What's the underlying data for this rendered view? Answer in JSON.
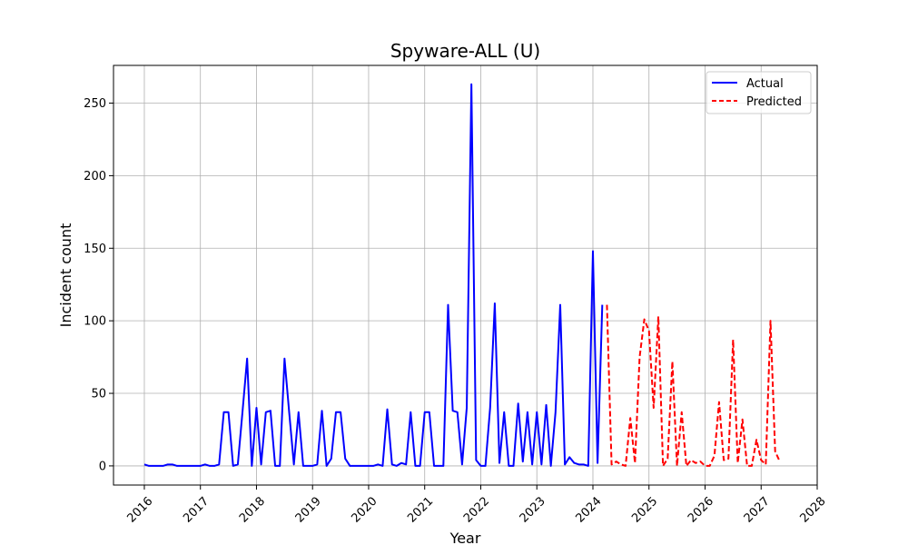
{
  "chart_data": {
    "type": "line",
    "title": "Spyware-ALL (U)",
    "xlabel": "Year",
    "ylabel": "Incident count",
    "xlim": [
      2015.45,
      2028.0
    ],
    "ylim": [
      -13.2,
      276.0
    ],
    "grid": true,
    "legend_position": "top-right",
    "x_ticks": [
      2016,
      2017,
      2018,
      2019,
      2020,
      2021,
      2022,
      2023,
      2024,
      2025,
      2026,
      2027,
      2028
    ],
    "x_tick_labels": [
      "2016",
      "2017",
      "2018",
      "2019",
      "2020",
      "2021",
      "2022",
      "2023",
      "2024",
      "2025",
      "2026",
      "2027",
      "2028"
    ],
    "y_ticks": [
      0,
      50,
      100,
      150,
      200,
      250
    ],
    "y_tick_labels": [
      "0",
      "50",
      "100",
      "150",
      "200",
      "250"
    ],
    "series": [
      {
        "name": "Actual",
        "color": "#0000ff",
        "style": "solid",
        "x": [
          2016.0,
          2016.083,
          2016.167,
          2016.25,
          2016.333,
          2016.417,
          2016.5,
          2016.583,
          2016.667,
          2016.75,
          2016.833,
          2016.917,
          2017.0,
          2017.083,
          2017.167,
          2017.25,
          2017.333,
          2017.417,
          2017.5,
          2017.583,
          2017.667,
          2017.75,
          2017.833,
          2017.917,
          2018.0,
          2018.083,
          2018.167,
          2018.25,
          2018.333,
          2018.417,
          2018.5,
          2018.583,
          2018.667,
          2018.75,
          2018.833,
          2018.917,
          2019.0,
          2019.083,
          2019.167,
          2019.25,
          2019.333,
          2019.417,
          2019.5,
          2019.583,
          2019.667,
          2019.75,
          2019.833,
          2019.917,
          2020.0,
          2020.083,
          2020.167,
          2020.25,
          2020.333,
          2020.417,
          2020.5,
          2020.583,
          2020.667,
          2020.75,
          2020.833,
          2020.917,
          2021.0,
          2021.083,
          2021.167,
          2021.25,
          2021.333,
          2021.417,
          2021.5,
          2021.583,
          2021.667,
          2021.75,
          2021.833,
          2021.917,
          2022.0,
          2022.083,
          2022.167,
          2022.25,
          2022.333,
          2022.417,
          2022.5,
          2022.583,
          2022.667,
          2022.75,
          2022.833,
          2022.917,
          2023.0,
          2023.083,
          2023.167,
          2023.25,
          2023.333,
          2023.417,
          2023.5,
          2023.583,
          2023.667,
          2023.75,
          2023.833,
          2023.917,
          2024.0,
          2024.083,
          2024.167
        ],
        "values": [
          1,
          0,
          0,
          0,
          0,
          1,
          1,
          0,
          0,
          0,
          0,
          0,
          0,
          1,
          0,
          0,
          1,
          37,
          37,
          0,
          1,
          37,
          74,
          0,
          40,
          1,
          37,
          38,
          0,
          0,
          74,
          37,
          1,
          37,
          0,
          0,
          0,
          1,
          38,
          0,
          5,
          37,
          37,
          5,
          0,
          0,
          0,
          0,
          0,
          0,
          1,
          0,
          39,
          1,
          0,
          2,
          1,
          37,
          0,
          0,
          37,
          37,
          0,
          0,
          0,
          111,
          38,
          37,
          1,
          40,
          263,
          4,
          0,
          0,
          40,
          112,
          2,
          37,
          0,
          0,
          43,
          3,
          37,
          1,
          37,
          1,
          42,
          0,
          37,
          111,
          1,
          6,
          2,
          1,
          1,
          0,
          148,
          2,
          111
        ]
      },
      {
        "name": "Predicted",
        "color": "#ff0000",
        "style": "dashed",
        "x": [
          2024.25,
          2024.333,
          2024.417,
          2024.5,
          2024.583,
          2024.667,
          2024.75,
          2024.833,
          2024.917,
          2025.0,
          2025.083,
          2025.167,
          2025.25,
          2025.333,
          2025.417,
          2025.5,
          2025.583,
          2025.667,
          2025.75,
          2025.833,
          2025.917,
          2026.0,
          2026.083,
          2026.167,
          2026.25,
          2026.333,
          2026.417,
          2026.5,
          2026.583,
          2026.667,
          2026.75,
          2026.833,
          2026.917,
          2027.0,
          2027.083,
          2027.167,
          2027.25,
          2027.333
        ],
        "values": [
          111,
          1,
          3,
          1,
          0,
          33,
          2,
          75,
          101,
          93,
          40,
          103,
          0,
          5,
          72,
          0,
          37,
          0,
          4,
          2,
          3,
          0,
          0,
          7,
          44,
          4,
          5,
          87,
          2,
          32,
          0,
          0,
          18,
          4,
          1,
          100,
          10,
          3
        ]
      }
    ]
  }
}
